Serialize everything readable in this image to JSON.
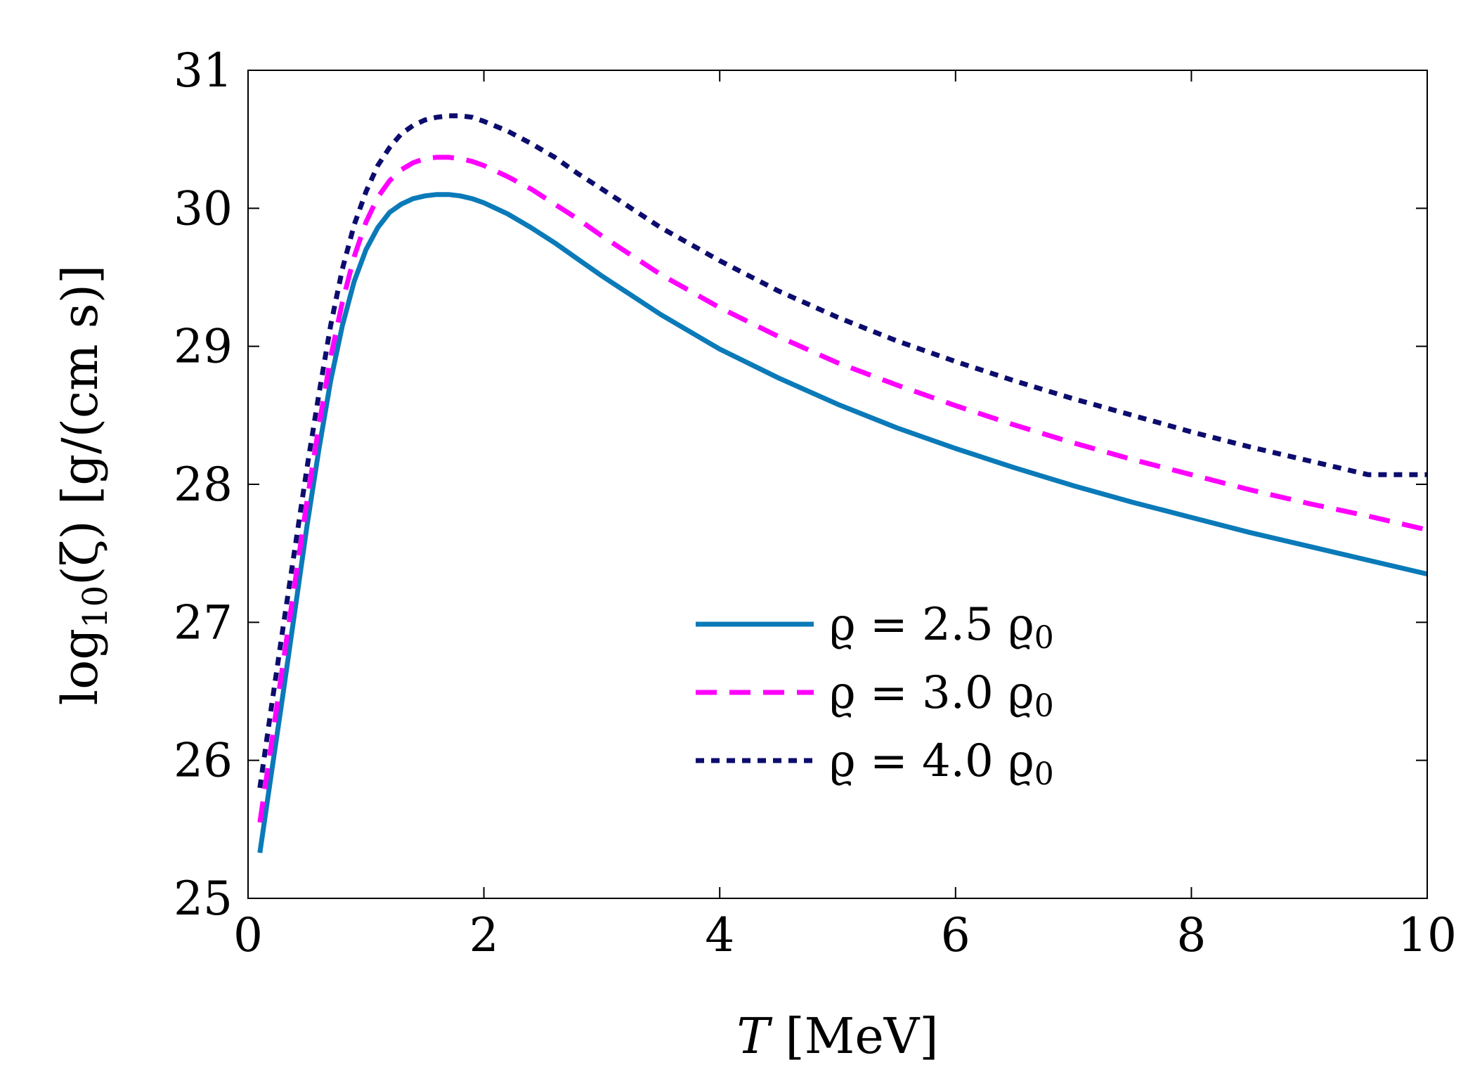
{
  "chart_data": {
    "type": "line",
    "title": "",
    "xlabel": {
      "symbol": "T",
      "unit": " [MeV]"
    },
    "ylabel": {
      "prefix": "log",
      "subscript": "10",
      "suffix": "(ζ) [g/(cm s)]"
    },
    "xlim": [
      0,
      10
    ],
    "ylim": [
      25,
      31
    ],
    "xticks": [
      0,
      2,
      4,
      6,
      8,
      10
    ],
    "yticks": [
      25,
      26,
      27,
      28,
      29,
      30,
      31
    ],
    "grid": false,
    "legend_position": "lower-center-right",
    "x": [
      0.1,
      0.2,
      0.3,
      0.4,
      0.5,
      0.6,
      0.7,
      0.8,
      0.9,
      1.0,
      1.1,
      1.2,
      1.3,
      1.4,
      1.5,
      1.6,
      1.7,
      1.8,
      1.9,
      2.0,
      2.2,
      2.4,
      2.6,
      2.8,
      3.0,
      3.5,
      4.0,
      4.5,
      5.0,
      5.5,
      6.0,
      6.5,
      7.0,
      7.5,
      8.0,
      8.5,
      9.0,
      9.5,
      10.0
    ],
    "series": [
      {
        "name": "ϱ = 2.5 ϱ0",
        "legend": {
          "lhs": "ϱ = 2.5 ϱ",
          "sub": "0"
        },
        "color": "#0a7ab8",
        "dash": "solid",
        "values": [
          25.33,
          25.92,
          26.5,
          27.1,
          27.7,
          28.25,
          28.75,
          29.15,
          29.47,
          29.7,
          29.86,
          29.97,
          30.03,
          30.07,
          30.09,
          30.1,
          30.1,
          30.09,
          30.07,
          30.04,
          29.96,
          29.86,
          29.75,
          29.63,
          29.51,
          29.23,
          28.98,
          28.77,
          28.58,
          28.41,
          28.26,
          28.12,
          27.99,
          27.87,
          27.76,
          27.65,
          27.55,
          27.45,
          27.35
        ]
      },
      {
        "name": "ϱ = 3.0 ϱ0",
        "legend": {
          "lhs": "ϱ = 3.0 ϱ",
          "sub": "0"
        },
        "color": "#ff00ff",
        "dash": "dashed",
        "values": [
          25.55,
          26.13,
          26.72,
          27.3,
          27.88,
          28.42,
          28.92,
          29.32,
          29.65,
          29.9,
          30.08,
          30.2,
          30.28,
          30.33,
          30.36,
          30.37,
          30.37,
          30.36,
          30.34,
          30.31,
          30.23,
          30.14,
          30.03,
          29.92,
          29.8,
          29.52,
          29.28,
          29.07,
          28.88,
          28.72,
          28.57,
          28.43,
          28.3,
          28.18,
          28.07,
          27.96,
          27.86,
          27.77,
          27.67
        ]
      },
      {
        "name": "ϱ = 4.0 ϱ0",
        "legend": {
          "lhs": "ϱ = 4.0 ϱ",
          "sub": "0"
        },
        "color": "#0c0c6e",
        "dash": "dotted",
        "values": [
          25.8,
          26.4,
          26.98,
          27.55,
          28.12,
          28.65,
          29.15,
          29.56,
          29.88,
          30.12,
          30.31,
          30.44,
          30.54,
          30.6,
          30.64,
          30.66,
          30.67,
          30.67,
          30.66,
          30.63,
          30.56,
          30.47,
          30.37,
          30.25,
          30.14,
          29.86,
          29.62,
          29.4,
          29.21,
          29.04,
          28.89,
          28.75,
          28.62,
          28.5,
          28.38,
          28.27,
          28.17,
          28.07,
          28.07
        ]
      }
    ]
  }
}
